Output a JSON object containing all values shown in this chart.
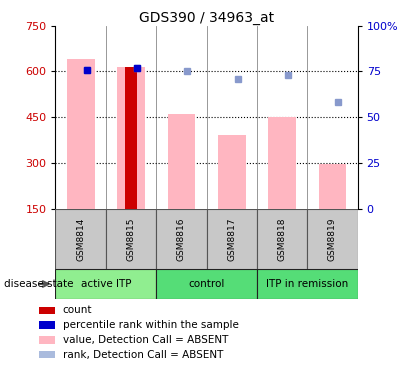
{
  "title": "GDS390 / 34963_at",
  "samples": [
    "GSM8814",
    "GSM8815",
    "GSM8816",
    "GSM8817",
    "GSM8818",
    "GSM8819"
  ],
  "pink_bar_values": [
    640,
    615,
    460,
    390,
    450,
    295
  ],
  "red_bar_values": [
    null,
    615,
    null,
    null,
    null,
    null
  ],
  "blue_square_values": [
    76,
    77,
    75,
    71,
    73,
    58
  ],
  "dark_blue_present": [
    0,
    1
  ],
  "ylim_left": [
    150,
    750
  ],
  "ylim_right": [
    0,
    100
  ],
  "yticks_left": [
    150,
    300,
    450,
    600,
    750
  ],
  "ytick_labels_left": [
    "150",
    "300",
    "450",
    "600",
    "750"
  ],
  "yticks_right": [
    0,
    25,
    50,
    75,
    100
  ],
  "ytick_labels_right": [
    "0",
    "25",
    "50",
    "75",
    "100%"
  ],
  "grid_values": [
    300,
    450,
    600
  ],
  "groups": [
    {
      "label": "active ITP",
      "start": 0,
      "end": 2,
      "color": "#90EE90"
    },
    {
      "label": "control",
      "start": 2,
      "end": 4,
      "color": "#55DD77"
    },
    {
      "label": "ITP in remission",
      "start": 4,
      "end": 6,
      "color": "#55DD77"
    }
  ],
  "pink_bar_color": "#FFB6C1",
  "red_bar_color": "#CC0000",
  "blue_square_color": "#8899CC",
  "blue_sq_count_color": "#0000CC",
  "group_box_color": "#C8C8C8",
  "title_fontsize": 10,
  "axis_label_color_left": "#CC0000",
  "axis_label_color_right": "#0000CC",
  "legend_labels": [
    "count",
    "percentile rank within the sample",
    "value, Detection Call = ABSENT",
    "rank, Detection Call = ABSENT"
  ],
  "legend_colors": [
    "#CC0000",
    "#0000CC",
    "#FFB6C1",
    "#AABBDD"
  ]
}
